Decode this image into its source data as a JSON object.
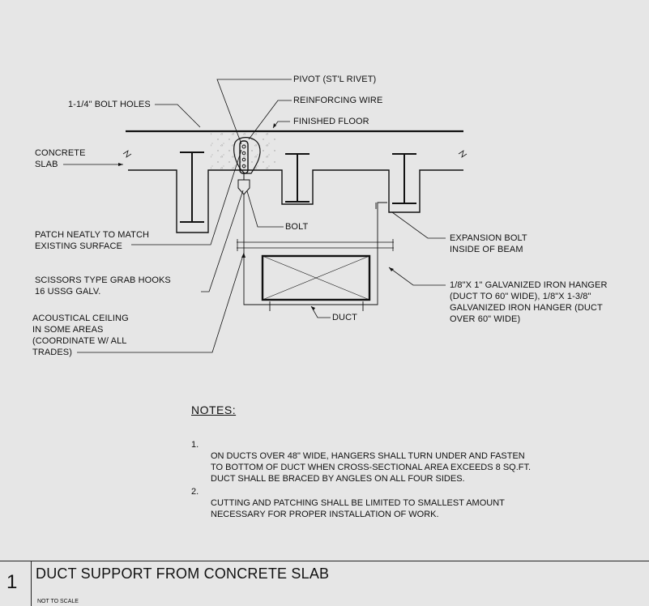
{
  "labels": {
    "pivot": "PIVOT (ST'L RIVET)",
    "reinforcing_wire": "REINFORCING WIRE",
    "bolt_holes": "1-1/4\" BOLT HOLES",
    "finished_floor": "FINISHED FLOOR",
    "concrete_slab": "CONCRETE\nSLAB",
    "patch": "PATCH NEATLY TO MATCH\nEXISTING SURFACE",
    "bolt": "BOLT",
    "expansion_bolt": "EXPANSION BOLT\nINSIDE OF BEAM",
    "scissors": "SCISSORS TYPE GRAB HOOKS\n16 USSG GALV.",
    "hanger": "1/8\"X 1\" GALVANIZED IRON HANGER\n(DUCT TO 60\" WIDE), 1/8\"X 1-3/8\"\nGALVANIZED IRON HANGER (DUCT\nOVER 60\" WIDE)",
    "duct": "DUCT",
    "acoustical": "ACOUSTICAL CEILING\nIN SOME AREAS\n(COORDINATE W/ ALL\nTRADES)"
  },
  "notes": {
    "title": "NOTES:",
    "items": [
      {
        "num": "1.",
        "text": "ON DUCTS OVER 48\" WIDE, HANGERS SHALL TURN UNDER AND FASTEN\nTO BOTTOM OF DUCT WHEN CROSS-SECTIONAL AREA EXCEEDS 8 SQ.FT.\nDUCT SHALL BE BRACED BY ANGLES ON ALL FOUR SIDES."
      },
      {
        "num": "2.",
        "text": "CUTTING AND PATCHING SHALL BE LIMITED TO SMALLEST AMOUNT\nNECESSARY FOR PROPER INSTALLATION OF WORK."
      }
    ]
  },
  "title_block": {
    "detail_number": "1",
    "title": "DUCT SUPPORT FROM CONCRETE SLAB",
    "scale": "NOT TO SCALE"
  }
}
